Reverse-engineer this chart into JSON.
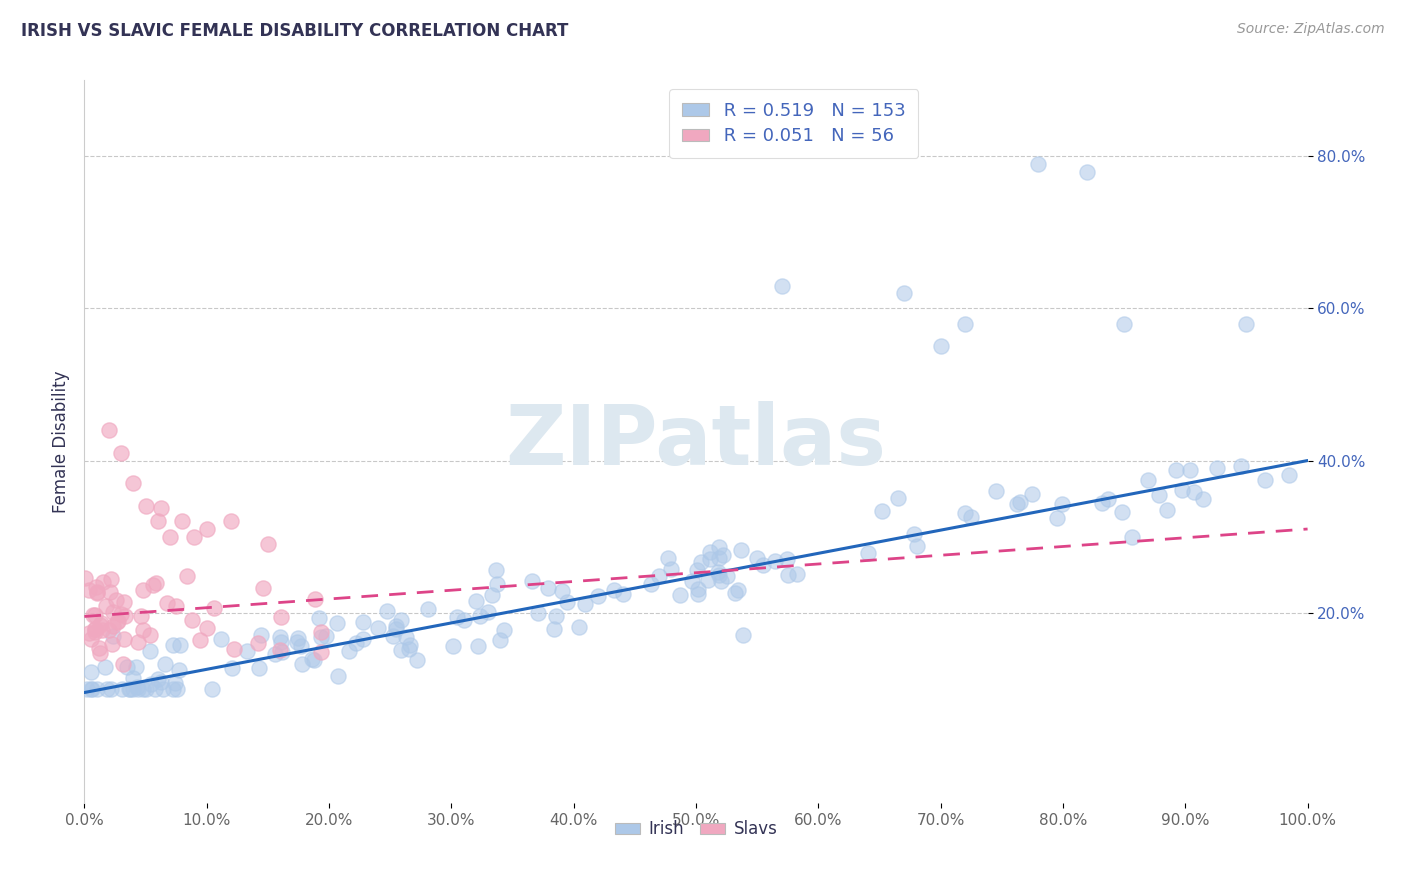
{
  "title": "IRISH VS SLAVIC FEMALE DISABILITY CORRELATION CHART",
  "source": "Source: ZipAtlas.com",
  "ylabel": "Female Disability",
  "xlim": [
    0.0,
    1.0
  ],
  "ylim": [
    -0.05,
    0.9
  ],
  "x_tick_positions": [
    0.0,
    0.1,
    0.2,
    0.3,
    0.4,
    0.5,
    0.6,
    0.7,
    0.8,
    0.9,
    1.0
  ],
  "x_tick_labels": [
    "0.0%",
    "10.0%",
    "20.0%",
    "30.0%",
    "40.0%",
    "50.0%",
    "60.0%",
    "70.0%",
    "80.0%",
    "90.0%",
    "100.0%"
  ],
  "y_tick_positions": [
    0.2,
    0.4,
    0.6,
    0.8
  ],
  "y_tick_labels": [
    "20.0%",
    "40.0%",
    "60.0%",
    "80.0%"
  ],
  "irish_R": 0.519,
  "irish_N": 153,
  "slavic_R": 0.051,
  "slavic_N": 56,
  "irish_color": "#adc8e8",
  "slavic_color": "#f0a8c0",
  "irish_line_color": "#2266bb",
  "slavic_line_color": "#dd4488",
  "background_color": "#ffffff",
  "grid_color": "#bbbbbb",
  "title_color": "#333355",
  "legend_label_color": "#4466bb",
  "watermark_color": "#dde8f0",
  "irish_intercept": 0.095,
  "irish_slope": 0.305,
  "slavic_intercept": 0.195,
  "slavic_slope": 0.115
}
